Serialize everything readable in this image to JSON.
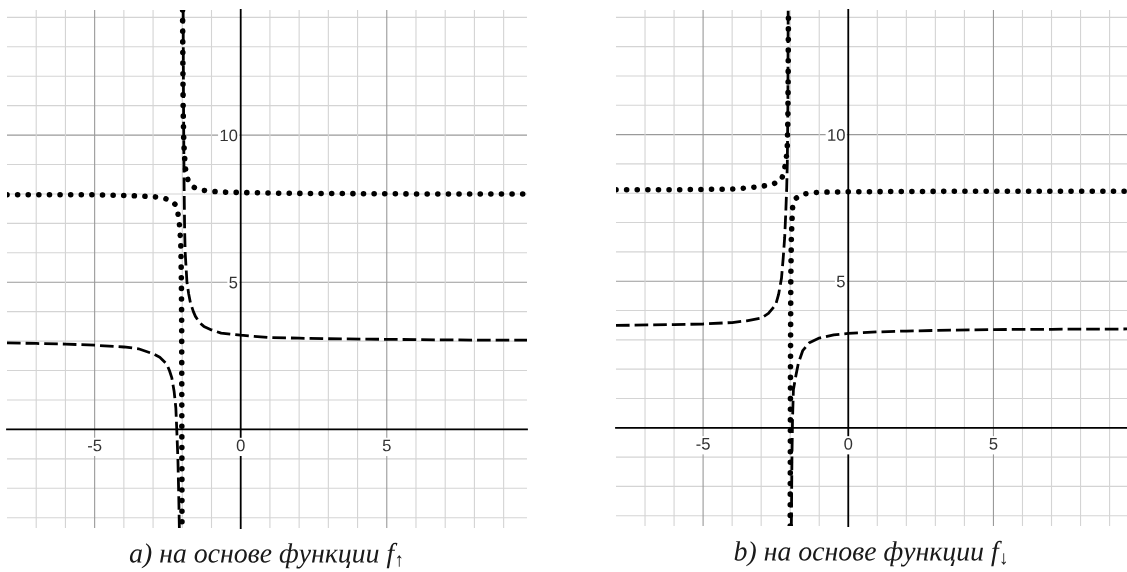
{
  "chart_data": [
    {
      "type": "line",
      "title": "a) на основе функции f$_{↑}$",
      "xlim": [
        -8,
        9.8
      ],
      "ylim": [
        -3.35,
        14.25
      ],
      "xticks": [
        {
          "value": -7,
          "label": null
        },
        {
          "value": -6,
          "label": null
        },
        -5,
        {
          "value": -4,
          "label": null
        },
        {
          "value": -3,
          "label": null
        },
        {
          "value": -2,
          "label": null
        },
        {
          "value": -1,
          "label": null
        },
        0,
        {
          "value": 1,
          "label": null
        },
        {
          "value": 2,
          "label": null
        },
        {
          "value": 3,
          "label": null
        },
        {
          "value": 4,
          "label": null
        },
        5,
        {
          "value": 6,
          "label": null
        },
        {
          "value": 7,
          "label": null
        },
        {
          "value": 8,
          "label": null
        },
        {
          "value": 9,
          "label": null
        }
      ],
      "yticks": [
        {
          "value": -3,
          "label": null
        },
        {
          "value": -2,
          "label": null
        },
        {
          "value": -1,
          "label": null
        },
        {
          "value": 0,
          "label": null
        },
        {
          "value": 1,
          "label": null
        },
        {
          "value": 2,
          "label": null
        },
        {
          "value": 3,
          "label": null
        },
        {
          "value": 4,
          "label": null
        },
        5,
        {
          "value": 6,
          "label": null
        },
        {
          "value": 7,
          "label": null
        },
        {
          "value": 8,
          "label": null
        },
        {
          "value": 9,
          "label": null
        },
        10,
        {
          "value": 11,
          "label": null
        },
        {
          "value": 12,
          "label": null
        },
        {
          "value": 13,
          "label": null
        },
        {
          "value": 14,
          "label": null
        }
      ],
      "grid": true,
      "series": [
        {
          "color": "#000000",
          "line_style": "dotted",
          "x": [
            -8,
            -7,
            -6,
            -5,
            -4,
            -3.5,
            -3,
            -2.75,
            -2.5,
            -2.35,
            -2.25,
            -2.15,
            -2.1,
            -2.05,
            -2.03,
            -2.02,
            -2.01,
            -2.0,
            -1.99,
            -1.98,
            -1.97,
            -1.95,
            -1.9,
            -1.8,
            -1.65,
            -1.5,
            -1.25,
            -1,
            -0.5,
            0,
            1,
            2,
            4,
            6,
            8,
            9.8
          ],
          "values": [
            7.97,
            7.97,
            7.97,
            7.97,
            7.95,
            7.93,
            7.91,
            7.88,
            7.82,
            7.75,
            7.65,
            7.35,
            7.0,
            6.3,
            5.0,
            3.5,
            -3.35,
            null,
            14.25,
            12.5,
            10.9,
            9.8,
            8.9,
            8.45,
            8.25,
            8.18,
            8.12,
            8.09,
            8.06,
            8.05,
            8.03,
            8.02,
            8.01,
            8.0,
            8.0,
            8.0
          ]
        },
        {
          "color": "#000000",
          "line_style": "dashed",
          "x": [
            -8,
            -7,
            -6,
            -5,
            -4,
            -3.5,
            -3,
            -2.77,
            -2.53,
            -2.44,
            -2.36,
            -2.28,
            -2.22,
            -2.19,
            -2.15,
            -2.12,
            -2.1,
            -2.0,
            -1.97,
            -1.96,
            -1.94,
            -1.92,
            -1.9,
            -1.87,
            -1.84,
            -1.78,
            -1.72,
            -1.62,
            -1.55,
            -1.4,
            -1.26,
            -1,
            -0.67,
            0,
            1,
            2,
            3,
            5,
            7,
            9.8
          ],
          "values": [
            2.94,
            2.92,
            2.9,
            2.86,
            2.8,
            2.74,
            2.57,
            2.45,
            2.22,
            2.0,
            1.76,
            1.3,
            0.72,
            0.02,
            -1.0,
            -2.3,
            -3.35,
            null,
            14.25,
            11.5,
            8.5,
            6.8,
            6.0,
            5.5,
            5.0,
            4.6,
            4.3,
            4.0,
            3.84,
            3.62,
            3.5,
            3.38,
            3.27,
            3.2,
            3.12,
            3.1,
            3.08,
            3.06,
            3.04,
            3.03
          ]
        }
      ]
    },
    {
      "type": "line",
      "title": "b) на основе функции f$_{↓}$",
      "xlim": [
        -8,
        9.6
      ],
      "ylim": [
        -3.35,
        14.25
      ],
      "xticks": [
        {
          "value": -7,
          "label": null
        },
        {
          "value": -6,
          "label": null
        },
        -5,
        {
          "value": -4,
          "label": null
        },
        {
          "value": -3,
          "label": null
        },
        {
          "value": -2,
          "label": null
        },
        {
          "value": -1,
          "label": null
        },
        0,
        {
          "value": 1,
          "label": null
        },
        {
          "value": 2,
          "label": null
        },
        {
          "value": 3,
          "label": null
        },
        {
          "value": 4,
          "label": null
        },
        5,
        {
          "value": 6,
          "label": null
        },
        {
          "value": 7,
          "label": null
        },
        {
          "value": 8,
          "label": null
        },
        {
          "value": 9,
          "label": null
        }
      ],
      "yticks": [
        {
          "value": -3,
          "label": null
        },
        {
          "value": -2,
          "label": null
        },
        {
          "value": -1,
          "label": null
        },
        {
          "value": 0,
          "label": null
        },
        {
          "value": 1,
          "label": null
        },
        {
          "value": 2,
          "label": null
        },
        {
          "value": 3,
          "label": null
        },
        {
          "value": 4,
          "label": null
        },
        5,
        {
          "value": 6,
          "label": null
        },
        {
          "value": 7,
          "label": null
        },
        {
          "value": 8,
          "label": null
        },
        {
          "value": 9,
          "label": null
        },
        10,
        {
          "value": 11,
          "label": null
        },
        {
          "value": 12,
          "label": null
        },
        {
          "value": 13,
          "label": null
        },
        {
          "value": 14,
          "label": null
        }
      ],
      "grid": true,
      "series": [
        {
          "color": "#000000",
          "line_style": "dotted",
          "x": [
            -8,
            -6,
            -5,
            -4,
            -3.3,
            -2.9,
            -2.6,
            -2.4,
            -2.3,
            -2.2,
            -2.14,
            -2.1,
            -2.08,
            -2.07,
            -2.06,
            -2.03,
            -2.0,
            -1.99,
            -1.98,
            -1.96,
            -1.93,
            -1.91,
            -1.8,
            -1.57,
            -1.34,
            -1.06,
            -0.72,
            0,
            2,
            5,
            9.6
          ],
          "values": [
            8.12,
            8.12,
            8.13,
            8.14,
            8.2,
            8.25,
            8.31,
            8.4,
            8.46,
            8.8,
            9.15,
            9.6,
            10.5,
            12.0,
            14.25,
            null,
            -3.35,
            2.0,
            5.0,
            6.5,
            7.3,
            7.6,
            7.83,
            7.97,
            8.0,
            8.03,
            8.04,
            8.05,
            8.06,
            8.07,
            8.07
          ]
        },
        {
          "color": "#000000",
          "line_style": "dashed",
          "x": [
            -8,
            -6,
            -5,
            -4,
            -3.5,
            -3,
            -2.75,
            -2.5,
            -2.4,
            -2.3,
            -2.24,
            -2.19,
            -2.15,
            -2.12,
            -2.1,
            -2.08,
            -2.07,
            -2.0,
            -1.96,
            -1.94,
            -1.92,
            -1.89,
            -1.8,
            -1.72,
            -1.57,
            -1.34,
            -1,
            -0.5,
            0,
            1,
            2,
            3,
            5,
            7,
            9.6
          ],
          "values": [
            3.49,
            3.52,
            3.54,
            3.59,
            3.65,
            3.74,
            3.9,
            4.2,
            4.55,
            5.1,
            5.8,
            6.5,
            7.4,
            8.2,
            9.0,
            11.0,
            14.25,
            null,
            -3.35,
            -1.0,
            0.3,
            1.3,
            1.8,
            2.2,
            2.63,
            2.9,
            3.06,
            3.17,
            3.22,
            3.27,
            3.3,
            3.32,
            3.35,
            3.36,
            3.37
          ]
        }
      ]
    }
  ]
}
